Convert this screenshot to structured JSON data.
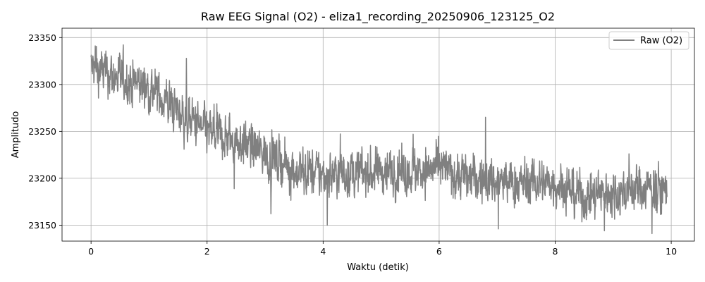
{
  "chart_data": {
    "type": "line",
    "title": "Raw EEG Signal (O2) - eliza1_recording_20250906_123125_O2",
    "xlabel": "Waktu (detik)",
    "ylabel": "Amplitudo",
    "xlim": [
      -0.5,
      10.4
    ],
    "ylim": [
      23133,
      23360
    ],
    "xticks": [
      0,
      2,
      4,
      6,
      8,
      10
    ],
    "xtick_labels": [
      "0",
      "2",
      "4",
      "6",
      "8",
      "10"
    ],
    "yticks": [
      23150,
      23200,
      23250,
      23300,
      23350
    ],
    "ytick_labels": [
      "23150",
      "23200",
      "23250",
      "23300",
      "23350"
    ],
    "grid": true,
    "legend": {
      "position": "top-right"
    },
    "series": [
      {
        "name": "Raw (O2)",
        "color": "#808080",
        "sample_interval": 0.004,
        "sample_count": 2483,
        "trend": [
          {
            "x": 0.0,
            "y": 23318
          },
          {
            "x": 0.5,
            "y": 23306
          },
          {
            "x": 1.0,
            "y": 23296
          },
          {
            "x": 1.5,
            "y": 23272
          },
          {
            "x": 2.0,
            "y": 23248
          },
          {
            "x": 2.5,
            "y": 23240
          },
          {
            "x": 3.0,
            "y": 23226
          },
          {
            "x": 3.5,
            "y": 23208
          },
          {
            "x": 4.0,
            "y": 23204
          },
          {
            "x": 4.5,
            "y": 23206
          },
          {
            "x": 5.0,
            "y": 23207
          },
          {
            "x": 5.5,
            "y": 23208
          },
          {
            "x": 6.0,
            "y": 23210
          },
          {
            "x": 6.5,
            "y": 23201
          },
          {
            "x": 7.0,
            "y": 23196
          },
          {
            "x": 7.5,
            "y": 23194
          },
          {
            "x": 8.0,
            "y": 23196
          },
          {
            "x": 8.5,
            "y": 23180
          },
          {
            "x": 9.0,
            "y": 23186
          },
          {
            "x": 9.5,
            "y": 23190
          },
          {
            "x": 9.93,
            "y": 23188
          }
        ],
        "noise_amplitude": 20,
        "extremes": [
          {
            "x": 0.09,
            "y": 23355
          },
          {
            "x": 0.05,
            "y": 23280
          },
          {
            "x": 6.8,
            "y": 23265
          },
          {
            "x": 7.02,
            "y": 23146
          },
          {
            "x": 8.85,
            "y": 23144
          }
        ]
      }
    ]
  }
}
